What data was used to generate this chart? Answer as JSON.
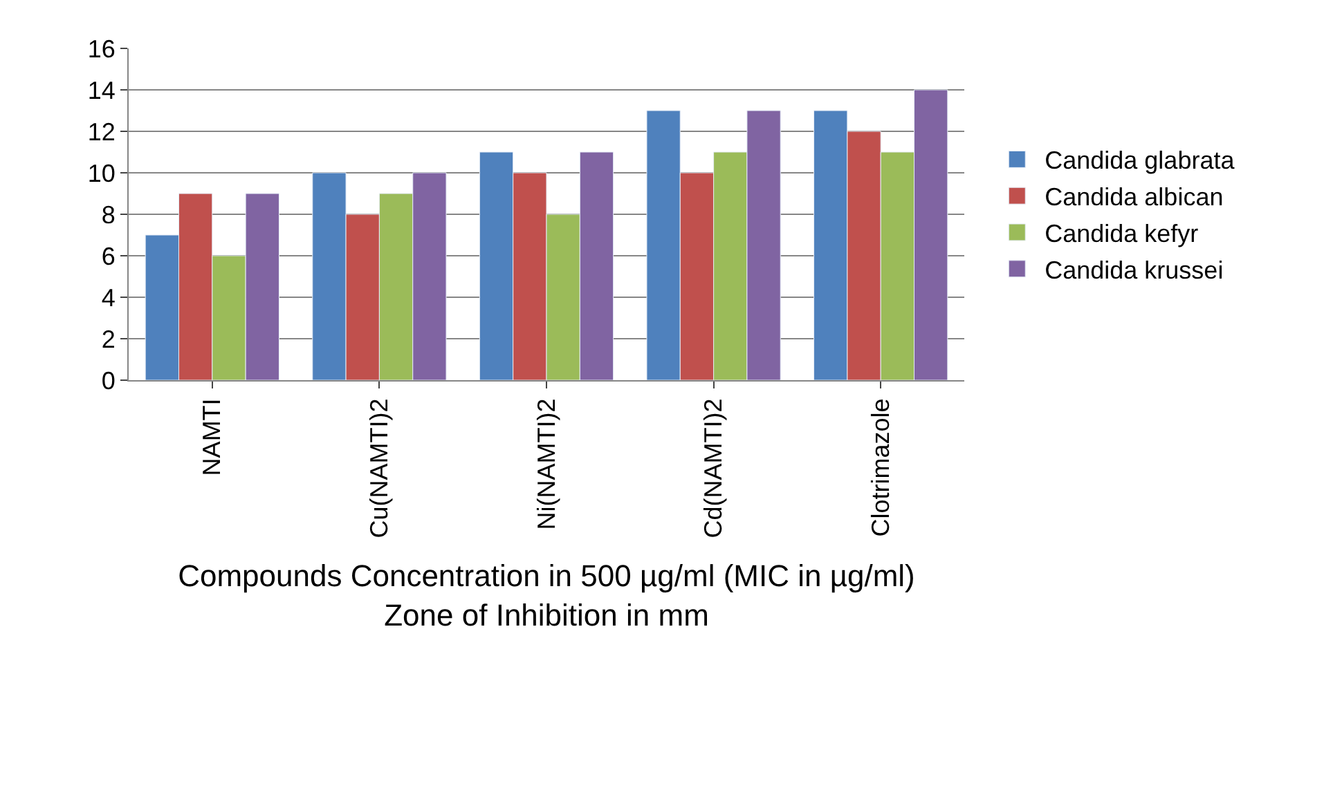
{
  "chart_data": {
    "type": "bar",
    "xlabel": "Compounds Concentration in 500 µg/ml (MIC in µg/ml)\nZone of Inhibition in mm",
    "categories": [
      "NAMTI",
      "Cu(NAMTI)2",
      "Ni(NAMTI)2",
      "Cd(NAMTI)2",
      "Clotrimazole"
    ],
    "series": [
      {
        "name": "Candida glabrata",
        "color": "#4f81bd",
        "values": [
          7,
          10,
          11,
          13,
          13
        ]
      },
      {
        "name": "Candida albican",
        "color": "#c0504d",
        "values": [
          9,
          8,
          10,
          10,
          12
        ]
      },
      {
        "name": "Candida kefyr",
        "color": "#9bbb59",
        "values": [
          6,
          9,
          8,
          11,
          11
        ]
      },
      {
        "name": "Candida krussei",
        "color": "#8064a2",
        "values": [
          9,
          10,
          11,
          13,
          14
        ]
      }
    ],
    "ylim": [
      0,
      16
    ],
    "yticks": [
      0,
      2,
      4,
      6,
      8,
      10,
      12,
      14,
      16
    ],
    "grid": "y",
    "legend": "right"
  }
}
